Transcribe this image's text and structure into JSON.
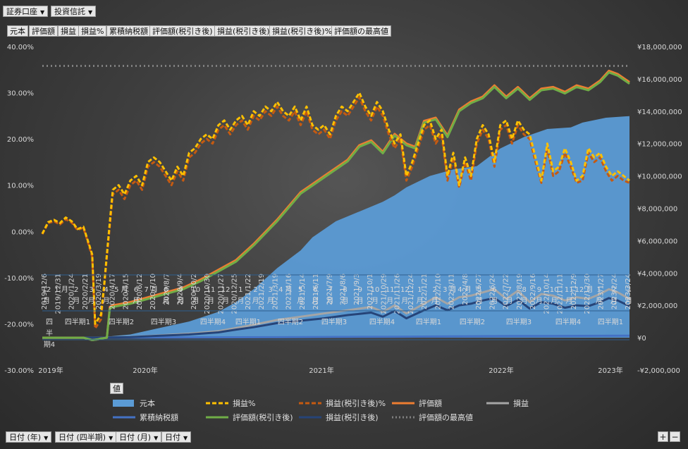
{
  "top_filters": [
    {
      "label": "証券口座"
    },
    {
      "label": "投資信託"
    }
  ],
  "value_buttons": [
    "元本",
    "評価額",
    "損益",
    "損益%",
    "累積納税額",
    "評価額(税引き後)",
    "損益(税引き後)",
    "損益(税引き後)%",
    "評価額の最高値"
  ],
  "axis_filters": [
    {
      "label": "日付 (年)"
    },
    {
      "label": "日付 (四半期)"
    },
    {
      "label": "日付 (月)"
    },
    {
      "label": "日付"
    }
  ],
  "corner_buttons": {
    "plus": "+",
    "minus": "−"
  },
  "legend": {
    "header": "値",
    "items": [
      {
        "label": "元本",
        "color": "#5b9bd5",
        "style": "area"
      },
      {
        "label": "損益%",
        "color": "#ffc000",
        "style": "dashed"
      },
      {
        "label": "損益(税引き後)%",
        "color": "#c55a11",
        "style": "dashed"
      },
      {
        "label": "評価額",
        "color": "#ed7d31",
        "style": "solid"
      },
      {
        "label": "損益",
        "color": "#a5a5a5",
        "style": "solid"
      },
      {
        "label": "累積納税額",
        "color": "#4472c4",
        "style": "solid"
      },
      {
        "label": "評価額(税引き後)",
        "color": "#70ad47",
        "style": "solid"
      },
      {
        "label": "損益(税引き後)",
        "color": "#264478",
        "style": "solid"
      },
      {
        "label": "評価額の最高値",
        "color": "#7f7f7f",
        "style": "dotted"
      }
    ]
  },
  "chart_data": {
    "type": "line",
    "left_axis": {
      "range": [
        -30,
        40
      ],
      "ticks": [
        "40.00%",
        "30.00%",
        "20.00%",
        "10.00%",
        "0.00%",
        "-10.00%",
        "-20.00%",
        "-30.00%"
      ],
      "tick_values": [
        40,
        30,
        20,
        10,
        0,
        -10,
        -20,
        -30
      ]
    },
    "right_axis": {
      "range": [
        -2000000,
        18000000
      ],
      "ticks": [
        "¥18,000,000",
        "¥16,000,000",
        "¥14,000,000",
        "¥12,000,000",
        "¥10,000,000",
        "¥8,000,000",
        "¥6,000,000",
        "¥4,000,000",
        "¥2,000,000",
        "¥0",
        "-¥2,000,000"
      ],
      "tick_values": [
        18000000,
        16000000,
        14000000,
        12000000,
        10000000,
        8000000,
        6000000,
        4000000,
        2000000,
        0,
        -2000000
      ]
    },
    "date_labels": [
      "2019/12/6",
      "2019/12/31",
      "2020/1/24",
      "2020/2/21",
      "2020/3/19",
      "2020/4/17",
      "2020/5/15",
      "2020/6/12",
      "2020/7/10",
      "2020/8/7",
      "2020/9/4",
      "2020/10/2",
      "2020/10/30",
      "2020/11/27",
      "2020/12/25",
      "2021/1/22",
      "2021/2/19",
      "2021/3/19",
      "2021/4/16",
      "2021/5/14",
      "2021/6/11",
      "2021/7/9",
      "2021/8/6",
      "2021/9/3",
      "2021/10/1",
      "2021/10/29",
      "2021/11/26",
      "2021/12/24",
      "2022/1/21",
      "2022/2/10",
      "2022/3/11",
      "2022/4/8",
      "2022/5/27",
      "2022/6/24",
      "2022/7/22",
      "2022/8/19",
      "2022/9/16",
      "2022/10/14",
      "2022/11/11",
      "2022/12/9",
      "2022/12/30",
      "2023/1/27",
      "2023/2/24",
      "2023/3/24"
    ],
    "month_labels": [
      "12\n月",
      "1 月",
      "2\n月",
      "3\n月",
      "4\n月",
      "5 月",
      "6\n月",
      "7 月",
      "8\n月",
      "9\n月",
      "10\n月",
      "11\n月",
      "12\n月",
      "1\n月",
      "2\n月",
      "3\n月",
      "4 月",
      "5\n月",
      "6\n月",
      "7\n月",
      "8\n月",
      "9\n月",
      "10\n月",
      "11\n月",
      "12\n月",
      "1\n月",
      "2\n月",
      "3 月",
      "4 月",
      "5\n月",
      "6\n月",
      "7\n月",
      "8\n月",
      "9\n月",
      "10\n月",
      "11\n月",
      "12 月",
      "1\n月",
      "2\n月",
      "3\n月"
    ],
    "quarter_labels": [
      "四\n半\n期4",
      "四半期1",
      "四半期2",
      "四半期3",
      "四半期4",
      "四半期1",
      "四半期2",
      "四半期3",
      "四半期4",
      "四半期1",
      "四半期2",
      "四半期3",
      "四半期4",
      "四半期1"
    ],
    "year_labels": [
      "2019年",
      "2020年",
      "2021年",
      "2022年",
      "2023年"
    ],
    "series": [
      {
        "name": "元本",
        "axis": "right",
        "x": [
          0,
          0.035,
          0.05,
          0.06,
          0.075,
          0.09,
          0.1,
          0.115,
          0.12,
          0.15,
          0.2,
          0.25,
          0.3,
          0.33,
          0.36,
          0.4,
          0.44,
          0.46,
          0.5,
          0.54,
          0.58,
          0.6,
          0.62,
          0.66,
          0.7,
          0.74,
          0.78,
          0.82,
          0.86,
          0.9,
          0.92,
          0.96,
          1
        ],
        "values": [
          0,
          0,
          0,
          0,
          50000,
          50000,
          60000,
          80000,
          100000,
          200000,
          600000,
          1000000,
          1600000,
          2200000,
          3000000,
          4300000,
          5400000,
          6200000,
          7200000,
          7800000,
          8400000,
          8800000,
          9300000,
          10000000,
          10400000,
          10600000,
          11700000,
          12400000,
          12900000,
          13000000,
          13300000,
          13600000,
          13700000
        ]
      },
      {
        "name": "評価額の最高値",
        "axis": "right",
        "x": [
          0,
          1
        ],
        "values": [
          16800000,
          16800000
        ]
      },
      {
        "name": "評価額",
        "axis": "right",
        "x": [
          0,
          0.035,
          0.05,
          0.07,
          0.085,
          0.095,
          0.1,
          0.11,
          0.115,
          0.12,
          0.15,
          0.18,
          0.21,
          0.24,
          0.27,
          0.3,
          0.33,
          0.36,
          0.4,
          0.44,
          0.46,
          0.48,
          0.5,
          0.52,
          0.54,
          0.56,
          0.58,
          0.6,
          0.62,
          0.635,
          0.65,
          0.67,
          0.69,
          0.71,
          0.73,
          0.75,
          0.77,
          0.79,
          0.81,
          0.83,
          0.85,
          0.87,
          0.89,
          0.91,
          0.93,
          0.95,
          0.965,
          0.98,
          1
        ],
        "values": [
          0,
          0,
          0,
          0,
          -150000,
          -100000,
          -50000,
          0,
          1900000,
          2000000,
          2200000,
          2500000,
          2800000,
          3100000,
          3600000,
          4200000,
          4800000,
          5800000,
          7300000,
          9000000,
          9500000,
          10000000,
          10500000,
          11000000,
          11900000,
          12200000,
          11500000,
          12600000,
          12000000,
          11800000,
          13400000,
          13600000,
          12500000,
          14100000,
          14600000,
          14900000,
          15600000,
          14900000,
          15500000,
          14800000,
          15400000,
          15500000,
          15200000,
          15600000,
          15400000,
          15900000,
          16500000,
          16300000,
          15800000
        ]
      },
      {
        "name": "評価額(税引き後)",
        "axis": "right",
        "x": [
          0,
          0.035,
          0.05,
          0.07,
          0.085,
          0.095,
          0.1,
          0.11,
          0.115,
          0.12,
          0.15,
          0.18,
          0.21,
          0.24,
          0.27,
          0.3,
          0.33,
          0.36,
          0.4,
          0.44,
          0.46,
          0.48,
          0.5,
          0.52,
          0.54,
          0.56,
          0.58,
          0.6,
          0.62,
          0.635,
          0.65,
          0.67,
          0.69,
          0.71,
          0.73,
          0.75,
          0.77,
          0.79,
          0.81,
          0.83,
          0.85,
          0.87,
          0.89,
          0.91,
          0.93,
          0.95,
          0.965,
          0.98,
          1
        ],
        "values": [
          0,
          0,
          0,
          0,
          -150000,
          -100000,
          -50000,
          0,
          1800000,
          1900000,
          2100000,
          2400000,
          2700000,
          3000000,
          3500000,
          4100000,
          4700000,
          5700000,
          7200000,
          8900000,
          9400000,
          9900000,
          10400000,
          10900000,
          11800000,
          12100000,
          11400000,
          12500000,
          11900000,
          11700000,
          13300000,
          13500000,
          12400000,
          14000000,
          14500000,
          14800000,
          15500000,
          14800000,
          15400000,
          14700000,
          15300000,
          15400000,
          15100000,
          15500000,
          15300000,
          15800000,
          16400000,
          16200000,
          15700000
        ]
      },
      {
        "name": "損益",
        "axis": "right",
        "x": [
          0,
          0.1,
          0.115,
          0.15,
          0.2,
          0.25,
          0.3,
          0.33,
          0.36,
          0.4,
          0.44,
          0.48,
          0.52,
          0.56,
          0.58,
          0.6,
          0.62,
          0.65,
          0.67,
          0.69,
          0.71,
          0.73,
          0.75,
          0.77,
          0.79,
          0.81,
          0.83,
          0.85,
          0.87,
          0.89,
          0.91,
          0.93,
          0.95,
          0.965,
          0.98,
          1
        ],
        "values": [
          0,
          0,
          20000,
          50000,
          150000,
          250000,
          400000,
          600000,
          800000,
          1100000,
          1300000,
          1500000,
          1700000,
          1900000,
          1600000,
          2000000,
          1500000,
          2100000,
          2500000,
          2100000,
          2500000,
          2600000,
          2800000,
          3000000,
          2400000,
          2900000,
          2200000,
          2700000,
          2600000,
          2300000,
          2500000,
          2400000,
          2700000,
          3000000,
          2800000,
          2400000
        ]
      },
      {
        "name": "損益(税引き後)",
        "axis": "right",
        "x": [
          0,
          0.1,
          0.115,
          0.15,
          0.2,
          0.25,
          0.3,
          0.33,
          0.36,
          0.4,
          0.44,
          0.48,
          0.52,
          0.56,
          0.58,
          0.6,
          0.62,
          0.65,
          0.67,
          0.69,
          0.71,
          0.73,
          0.75,
          0.77,
          0.79,
          0.81,
          0.83,
          0.85,
          0.87,
          0.89,
          0.91,
          0.93,
          0.95,
          0.965,
          0.98,
          1
        ],
        "values": [
          0,
          0,
          15000,
          40000,
          120000,
          200000,
          330000,
          500000,
          650000,
          900000,
          1050000,
          1200000,
          1400000,
          1550000,
          1300000,
          1650000,
          1200000,
          1700000,
          2000000,
          1700000,
          2000000,
          2100000,
          2300000,
          2450000,
          1950000,
          2350000,
          1800000,
          2200000,
          2100000,
          1850000,
          2000000,
          1950000,
          2200000,
          2450000,
          2300000,
          1950000
        ]
      },
      {
        "name": "累積納税額",
        "axis": "right",
        "x": [
          0,
          0.4,
          0.6,
          0.8,
          1
        ],
        "values": [
          0,
          30000,
          60000,
          100000,
          120000
        ]
      },
      {
        "name": "損益%",
        "axis": "left",
        "x": [
          0,
          0.01,
          0.02,
          0.03,
          0.04,
          0.05,
          0.06,
          0.07,
          0.075,
          0.085,
          0.09,
          0.1,
          0.105,
          0.11,
          0.12,
          0.13,
          0.14,
          0.15,
          0.16,
          0.17,
          0.18,
          0.19,
          0.2,
          0.21,
          0.22,
          0.23,
          0.24,
          0.25,
          0.26,
          0.27,
          0.28,
          0.29,
          0.3,
          0.31,
          0.32,
          0.33,
          0.34,
          0.35,
          0.36,
          0.37,
          0.38,
          0.39,
          0.4,
          0.41,
          0.42,
          0.43,
          0.44,
          0.45,
          0.46,
          0.47,
          0.48,
          0.49,
          0.5,
          0.51,
          0.52,
          0.53,
          0.54,
          0.55,
          0.56,
          0.57,
          0.58,
          0.59,
          0.6,
          0.61,
          0.62,
          0.63,
          0.64,
          0.65,
          0.66,
          0.67,
          0.68,
          0.69,
          0.7,
          0.71,
          0.72,
          0.73,
          0.74,
          0.75,
          0.76,
          0.77,
          0.78,
          0.79,
          0.8,
          0.81,
          0.82,
          0.83,
          0.84,
          0.85,
          0.86,
          0.87,
          0.88,
          0.89,
          0.9,
          0.91,
          0.92,
          0.93,
          0.94,
          0.95,
          0.96,
          0.97,
          0.98,
          0.99,
          1
        ],
        "values": [
          -0.5,
          2,
          2.5,
          1.8,
          3,
          2.2,
          0.5,
          1,
          -1,
          -5,
          -20,
          -18,
          -12,
          -5,
          9,
          10,
          8,
          11,
          12,
          10,
          15,
          16,
          15,
          13,
          11,
          14,
          12,
          17,
          18,
          20,
          21,
          20,
          23,
          24,
          22,
          24,
          25,
          23,
          26,
          25,
          27,
          26,
          28,
          26,
          25,
          27,
          24,
          27,
          23,
          22,
          23,
          21,
          25,
          27,
          26,
          28,
          30,
          27,
          25,
          28,
          26,
          22,
          19,
          21,
          12,
          15,
          19,
          23,
          24,
          20,
          22,
          12,
          17,
          10,
          16,
          12,
          20,
          23,
          21,
          15,
          23,
          24,
          20,
          24,
          22,
          21,
          16,
          11,
          19,
          13,
          14,
          18,
          15,
          11,
          12,
          18,
          16,
          17,
          14,
          12,
          13,
          12,
          11
        ]
      },
      {
        "name": "損益(税引き後)%",
        "axis": "left",
        "x": [
          0,
          0.01,
          0.02,
          0.03,
          0.04,
          0.05,
          0.06,
          0.07,
          0.075,
          0.085,
          0.09,
          0.1,
          0.105,
          0.11,
          0.12,
          0.13,
          0.14,
          0.15,
          0.16,
          0.17,
          0.18,
          0.19,
          0.2,
          0.21,
          0.22,
          0.23,
          0.24,
          0.25,
          0.26,
          0.27,
          0.28,
          0.29,
          0.3,
          0.31,
          0.32,
          0.33,
          0.34,
          0.35,
          0.36,
          0.37,
          0.38,
          0.39,
          0.4,
          0.41,
          0.42,
          0.43,
          0.44,
          0.45,
          0.46,
          0.47,
          0.48,
          0.49,
          0.5,
          0.51,
          0.52,
          0.53,
          0.54,
          0.55,
          0.56,
          0.57,
          0.58,
          0.59,
          0.6,
          0.61,
          0.62,
          0.63,
          0.64,
          0.65,
          0.66,
          0.67,
          0.68,
          0.69,
          0.7,
          0.71,
          0.72,
          0.73,
          0.74,
          0.75,
          0.76,
          0.77,
          0.78,
          0.79,
          0.8,
          0.81,
          0.82,
          0.83,
          0.84,
          0.85,
          0.86,
          0.87,
          0.88,
          0.89,
          0.9,
          0.91,
          0.92,
          0.93,
          0.94,
          0.95,
          0.96,
          0.97,
          0.98,
          0.99,
          1
        ],
        "values": [
          -0.6,
          1.8,
          2.2,
          1.5,
          2.6,
          1.9,
          0.3,
          0.8,
          -1.2,
          -5.5,
          -21,
          -19,
          -12.5,
          -5.5,
          8,
          9,
          7,
          10,
          11,
          9,
          14,
          15,
          14,
          12,
          10,
          13,
          11,
          16,
          17,
          19,
          20,
          19,
          22,
          23,
          21,
          23,
          24,
          22,
          25,
          24,
          26,
          25,
          27,
          25,
          24,
          26,
          23,
          26,
          22,
          21,
          22,
          20,
          24,
          26,
          25,
          27,
          29,
          26,
          24,
          27,
          25,
          21,
          18,
          20,
          11,
          14,
          18,
          22,
          23,
          19,
          21,
          11,
          16,
          9.5,
          15,
          11,
          19,
          22,
          20,
          14,
          22,
          23,
          19,
          23,
          21,
          20,
          15,
          10.5,
          18,
          12,
          13,
          17,
          14,
          10.5,
          11,
          17,
          15,
          16,
          13,
          11,
          12,
          11,
          10.5
        ]
      }
    ]
  }
}
